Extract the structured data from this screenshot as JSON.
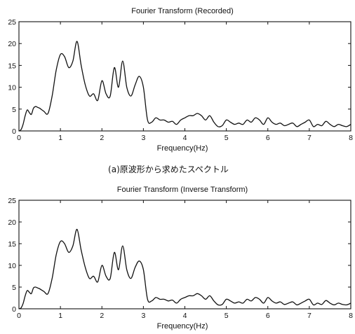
{
  "chart_data": [
    {
      "type": "line",
      "title": "Fourier Transform (Recorded)",
      "xlabel": "Frequency(Hz)",
      "ylabel": "",
      "xlim": [
        0,
        8
      ],
      "ylim": [
        0,
        25
      ],
      "xticks": [
        "0",
        "1",
        "2",
        "3",
        "4",
        "5",
        "6",
        "7",
        "8"
      ],
      "yticks": [
        "0",
        "5",
        "10",
        "15",
        "20",
        "25"
      ],
      "grid": false,
      "caption": "(a)原波形から求めたスペクトル",
      "x": [
        0,
        0.05,
        0.1,
        0.15,
        0.2,
        0.25,
        0.3,
        0.35,
        0.4,
        0.45,
        0.5,
        0.6,
        0.7,
        0.8,
        0.9,
        1.0,
        1.1,
        1.2,
        1.3,
        1.4,
        1.5,
        1.6,
        1.7,
        1.8,
        1.9,
        2.0,
        2.1,
        2.2,
        2.3,
        2.4,
        2.5,
        2.6,
        2.7,
        2.8,
        2.9,
        3.0,
        3.1,
        3.2,
        3.3,
        3.4,
        3.5,
        3.6,
        3.7,
        3.8,
        3.9,
        4.0,
        4.1,
        4.2,
        4.3,
        4.4,
        4.5,
        4.6,
        4.7,
        4.8,
        4.9,
        5.0,
        5.1,
        5.2,
        5.3,
        5.4,
        5.5,
        5.6,
        5.7,
        5.8,
        5.9,
        6.0,
        6.1,
        6.2,
        6.3,
        6.4,
        6.5,
        6.6,
        6.7,
        6.8,
        6.9,
        7.0,
        7.1,
        7.2,
        7.3,
        7.4,
        7.5,
        7.6,
        7.7,
        7.8,
        7.9,
        8.0
      ],
      "series": [
        {
          "values": [
            0,
            0.3,
            1.5,
            3.5,
            4.8,
            4.2,
            3.8,
            5.2,
            5.6,
            5.4,
            5.2,
            4.5,
            4.0,
            8.0,
            14.0,
            17.5,
            17.0,
            14.5,
            16.0,
            20.5,
            15.0,
            10.5,
            8.0,
            8.5,
            7.0,
            11.5,
            8.5,
            8.0,
            14.5,
            10.0,
            16.0,
            10.0,
            8.0,
            10.5,
            12.5,
            10.0,
            2.5,
            2.0,
            3.0,
            2.5,
            2.5,
            2.0,
            2.2,
            1.5,
            2.5,
            3.0,
            3.5,
            3.5,
            4.0,
            3.5,
            2.5,
            3.5,
            2.0,
            1.0,
            1.2,
            2.5,
            2.0,
            1.5,
            1.8,
            1.5,
            2.5,
            2.0,
            3.0,
            2.5,
            1.5,
            3.0,
            2.0,
            1.5,
            1.8,
            1.2,
            1.5,
            1.8,
            1.0,
            1.5,
            2.0,
            2.5,
            1.0,
            1.5,
            1.2,
            2.2,
            1.5,
            1.0,
            1.5,
            1.2,
            1.0,
            1.5
          ]
        }
      ]
    },
    {
      "type": "line",
      "title": "Fourier Transform (Inverse Transform)",
      "xlabel": "Frequency(Hz)",
      "ylabel": "",
      "xlim": [
        0,
        8
      ],
      "ylim": [
        0,
        25
      ],
      "xticks": [
        "0",
        "1",
        "2",
        "3",
        "4",
        "5",
        "6",
        "7",
        "8"
      ],
      "yticks": [
        "0",
        "5",
        "10",
        "15",
        "20",
        "25"
      ],
      "grid": false,
      "caption": "",
      "x": [
        0,
        0.05,
        0.1,
        0.15,
        0.2,
        0.25,
        0.3,
        0.35,
        0.4,
        0.45,
        0.5,
        0.6,
        0.7,
        0.8,
        0.9,
        1.0,
        1.1,
        1.2,
        1.3,
        1.4,
        1.5,
        1.6,
        1.7,
        1.8,
        1.9,
        2.0,
        2.1,
        2.2,
        2.3,
        2.4,
        2.5,
        2.6,
        2.7,
        2.8,
        2.9,
        3.0,
        3.1,
        3.2,
        3.3,
        3.4,
        3.5,
        3.6,
        3.7,
        3.8,
        3.9,
        4.0,
        4.1,
        4.2,
        4.3,
        4.4,
        4.5,
        4.6,
        4.7,
        4.8,
        4.9,
        5.0,
        5.1,
        5.2,
        5.3,
        5.4,
        5.5,
        5.6,
        5.7,
        5.8,
        5.9,
        6.0,
        6.1,
        6.2,
        6.3,
        6.4,
        6.5,
        6.6,
        6.7,
        6.8,
        6.9,
        7.0,
        7.1,
        7.2,
        7.3,
        7.4,
        7.5,
        7.6,
        7.7,
        7.8,
        7.9,
        8.0
      ],
      "series": [
        {
          "values": [
            0,
            0.2,
            1.2,
            3.0,
            4.2,
            3.8,
            3.5,
            4.8,
            5.0,
            4.8,
            4.6,
            4.0,
            3.5,
            7.0,
            12.5,
            15.5,
            15.0,
            13.0,
            14.5,
            18.3,
            13.5,
            9.5,
            7.0,
            7.5,
            6.2,
            10.0,
            7.5,
            7.0,
            13.0,
            9.0,
            14.5,
            9.0,
            7.0,
            9.5,
            11.0,
            9.0,
            2.2,
            1.8,
            2.6,
            2.2,
            2.2,
            1.8,
            2.0,
            1.3,
            2.2,
            2.6,
            3.0,
            3.0,
            3.5,
            3.0,
            2.2,
            3.0,
            1.8,
            0.9,
            1.0,
            2.2,
            1.8,
            1.3,
            1.6,
            1.3,
            2.2,
            1.8,
            2.6,
            2.2,
            1.3,
            2.6,
            1.8,
            1.3,
            1.6,
            1.0,
            1.3,
            1.6,
            0.9,
            1.3,
            1.8,
            2.2,
            0.9,
            1.3,
            1.0,
            1.9,
            1.3,
            0.9,
            1.3,
            1.0,
            0.9,
            1.3
          ]
        }
      ]
    }
  ]
}
